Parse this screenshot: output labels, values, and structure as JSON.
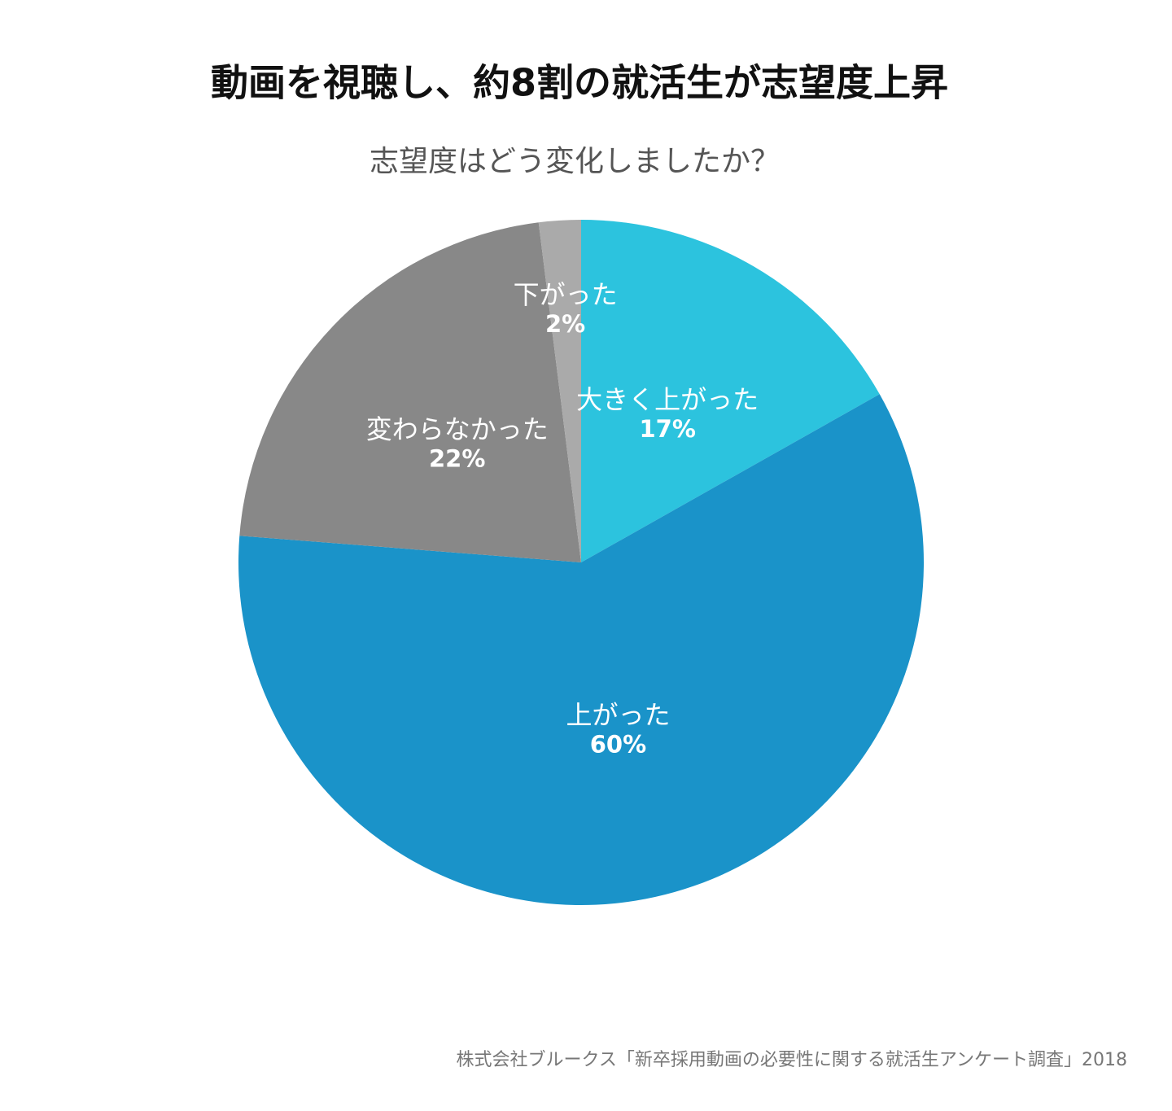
{
  "chart_data": {
    "type": "pie",
    "title": "動画を視聴し、約8割の就活生が志望度上昇",
    "subtitle": "志望度はどう変化しましたか？",
    "source": "株式会社ブルークス「新卒採用動画の必要性に関する就活生アンケート調査」2018",
    "categories": [
      "大きく上がった",
      "上がった",
      "変わらなかった",
      "下がった"
    ],
    "values": [
      17,
      60,
      22,
      2
    ],
    "value_labels": [
      "17%",
      "60%",
      "22%",
      "2%"
    ],
    "colors": [
      "#2cc3de",
      "#1a93c9",
      "#888888",
      "#aaaaaa"
    ]
  }
}
